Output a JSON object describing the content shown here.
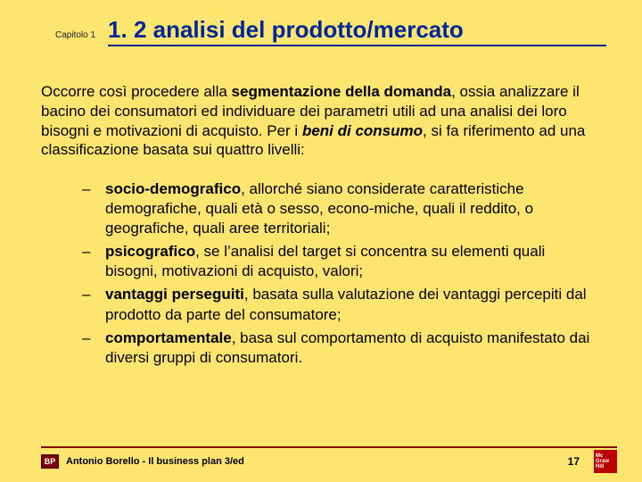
{
  "header": {
    "chapter": "Capitolo 1",
    "title": "1. 2 analisi del prodotto/mercato"
  },
  "paragraph": {
    "pre": "Occorre così procedere alla ",
    "seg": "segmentazione della domanda",
    "mid1": ", ossia analizzare il bacino dei consumatori ed individuare dei parametri utili ad una analisi dei loro bisogni e motivazioni di acquisto. Per i ",
    "beni": "beni di consumo",
    "post": ", si fa riferimento ad una classificazione basata sui quattro livelli:"
  },
  "items": [
    {
      "term": "socio-demografico",
      "text": ", allorché siano considerate caratteristiche demografiche, quali età o sesso, econo-miche, quali il reddito, o geografiche, quali aree territoriali;"
    },
    {
      "term": "psicografico",
      "text": ", se l’analisi del target si concentra su elementi quali bisogni, motivazioni di acquisto, valori;"
    },
    {
      "term": "vantaggi perseguiti",
      "text": ", basata sulla valutazione dei vantaggi percepiti dal prodotto da parte del consumatore;"
    },
    {
      "term": "comportamentale",
      "text": ", basa sul comportamento di acquisto manifestato dai diversi gruppi di consumatori."
    }
  ],
  "footer": {
    "bp": "BP",
    "text": "Antonio Borello - Il business plan 3/ed",
    "page": "17",
    "mgh1": "Mc",
    "mgh2": "Graw",
    "mgh3": "Hill"
  },
  "style": {
    "background": "#fee570",
    "title_color": "#002799",
    "rule_color": "#880000",
    "logo_bg": "#b80000",
    "title_fontsize": 26,
    "body_fontsize": 17
  }
}
